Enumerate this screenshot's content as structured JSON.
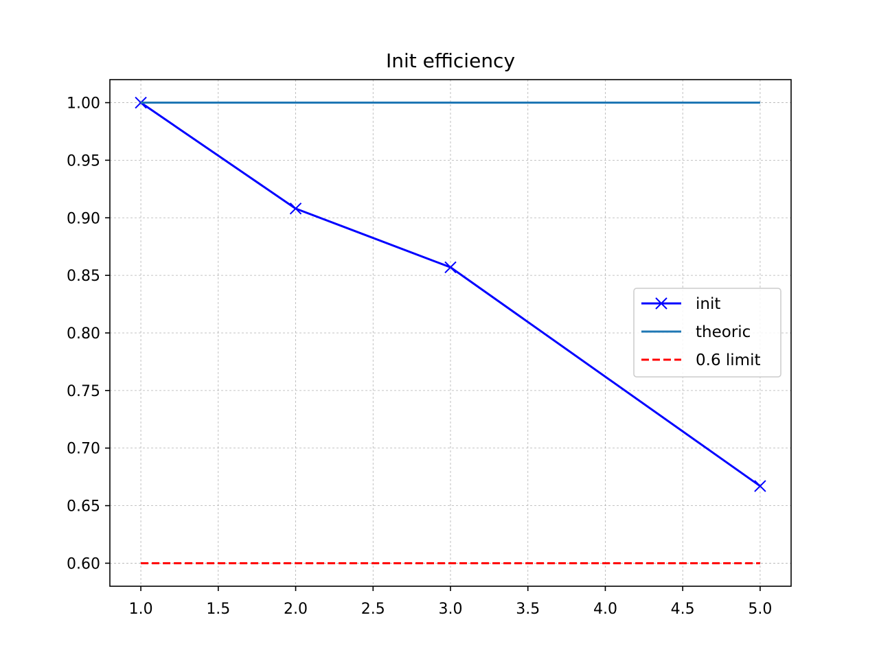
{
  "chart_data": {
    "type": "line",
    "title": "Init efficiency",
    "xlabel": "",
    "ylabel": "",
    "xlim": [
      0.8,
      5.2
    ],
    "ylim": [
      0.58,
      1.02
    ],
    "xticks": [
      1.0,
      1.5,
      2.0,
      2.5,
      3.0,
      3.5,
      4.0,
      4.5,
      5.0
    ],
    "xtick_labels": [
      "1.0",
      "1.5",
      "2.0",
      "2.5",
      "3.0",
      "3.5",
      "4.0",
      "4.5",
      "5.0"
    ],
    "yticks": [
      0.6,
      0.65,
      0.7,
      0.75,
      0.8,
      0.85,
      0.9,
      0.95,
      1.0
    ],
    "ytick_labels": [
      "0.60",
      "0.65",
      "0.70",
      "0.75",
      "0.80",
      "0.85",
      "0.90",
      "0.95",
      "1.00"
    ],
    "grid": true,
    "legend_position": "center-right",
    "series": [
      {
        "name": "init",
        "color": "#0000ff",
        "linestyle": "solid",
        "marker": "x",
        "x": [
          1,
          2,
          3,
          5
        ],
        "y": [
          1.0,
          0.908,
          0.857,
          0.667
        ]
      },
      {
        "name": "theoric",
        "color": "#1f77b4",
        "linestyle": "solid",
        "marker": "none",
        "x": [
          1,
          5
        ],
        "y": [
          1.0,
          1.0
        ]
      },
      {
        "name": "0.6 limit",
        "color": "#ff0000",
        "linestyle": "dashed",
        "marker": "none",
        "x": [
          1,
          5
        ],
        "y": [
          0.6,
          0.6
        ]
      }
    ]
  }
}
